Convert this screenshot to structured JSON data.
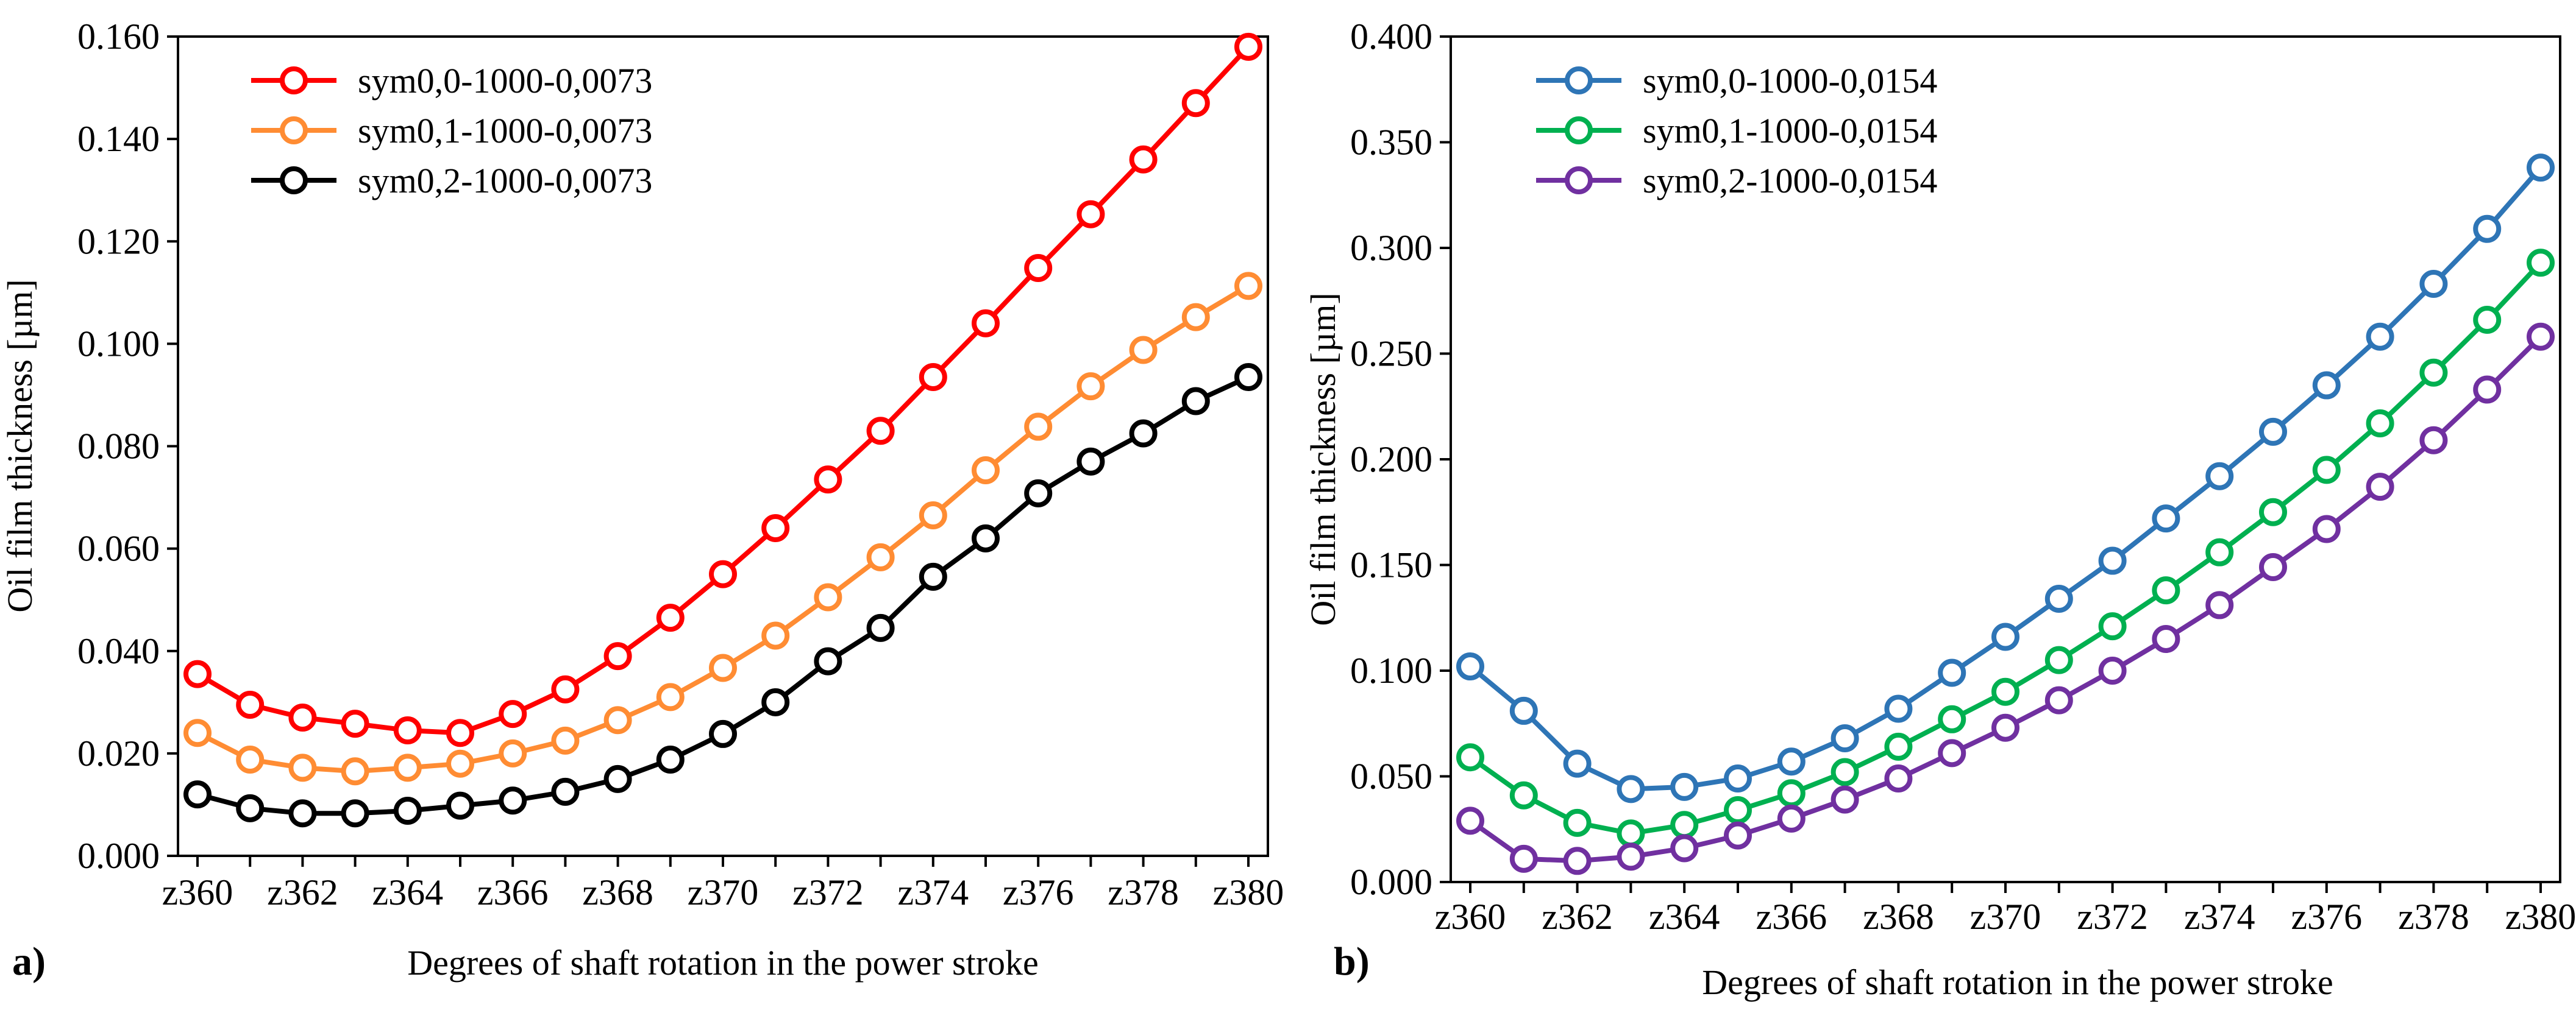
{
  "chart_data": [
    {
      "type": "line",
      "panel_label": "a)",
      "xlabel": "Degrees of shaft rotation in the power stroke",
      "ylabel": "Oil film thickness [µm]",
      "x": [
        "z360",
        "z361",
        "z362",
        "z363",
        "z364",
        "z365",
        "z366",
        "z367",
        "z368",
        "z369",
        "z370",
        "z371",
        "z372",
        "z373",
        "z374",
        "z375",
        "z376",
        "z377",
        "z378",
        "z379",
        "z380"
      ],
      "x_tick_labels": [
        "z360",
        "z362",
        "z364",
        "z366",
        "z368",
        "z370",
        "z372",
        "z374",
        "z376",
        "z378",
        "z380"
      ],
      "ylim": [
        0,
        0.16
      ],
      "y_ticks": [
        0,
        0.02,
        0.04,
        0.06,
        0.08,
        0.1,
        0.12,
        0.14,
        0.16
      ],
      "y_tick_labels": [
        "0.000",
        "0.020",
        "0.040",
        "0.060",
        "0.080",
        "0.100",
        "0.120",
        "0.140",
        "0.160"
      ],
      "grid": false,
      "legend_position": "top-left",
      "series": [
        {
          "name": "sym0,0-1000-0,0073",
          "color": "#ff0000",
          "values": [
            0.0355,
            0.0295,
            0.027,
            0.0258,
            0.0245,
            0.024,
            0.0277,
            0.0325,
            0.039,
            0.0465,
            0.055,
            0.064,
            0.0735,
            0.083,
            0.0935,
            0.104,
            0.1148,
            0.1253,
            0.136,
            0.147,
            0.158
          ]
        },
        {
          "name": "sym0,1-1000-0,0073",
          "color": "#ff8c33",
          "values": [
            0.024,
            0.0188,
            0.0172,
            0.0165,
            0.0172,
            0.018,
            0.02,
            0.0225,
            0.0265,
            0.031,
            0.0367,
            0.043,
            0.0505,
            0.0583,
            0.0665,
            0.0753,
            0.0838,
            0.0917,
            0.0988,
            0.1052,
            0.1113
          ]
        },
        {
          "name": "sym0,2-1000-0,0073",
          "color": "#000000",
          "values": [
            0.012,
            0.0093,
            0.0083,
            0.0083,
            0.0088,
            0.0098,
            0.0108,
            0.0125,
            0.015,
            0.0188,
            0.0238,
            0.03,
            0.038,
            0.0445,
            0.0545,
            0.062,
            0.0708,
            0.077,
            0.0825,
            0.0888,
            0.0935
          ]
        }
      ]
    },
    {
      "type": "line",
      "panel_label": "b)",
      "xlabel": "Degrees of shaft rotation in the power stroke",
      "ylabel": "Oil film thickness [µm]",
      "x": [
        "z360",
        "z361",
        "z362",
        "z363",
        "z364",
        "z365",
        "z366",
        "z367",
        "z368",
        "z369",
        "z370",
        "z371",
        "z372",
        "z373",
        "z374",
        "z375",
        "z376",
        "z377",
        "z378",
        "z379",
        "z380"
      ],
      "x_tick_labels": [
        "z360",
        "z362",
        "z364",
        "z366",
        "z368",
        "z370",
        "z372",
        "z374",
        "z376",
        "z378",
        "z380"
      ],
      "ylim": [
        0,
        0.4
      ],
      "y_ticks": [
        0,
        0.05,
        0.1,
        0.15,
        0.2,
        0.25,
        0.3,
        0.35,
        0.4
      ],
      "y_tick_labels": [
        "0.000",
        "0.050",
        "0.100",
        "0.150",
        "0.200",
        "0.250",
        "0.300",
        "0.350",
        "0.400"
      ],
      "grid": false,
      "legend_position": "top-left",
      "series": [
        {
          "name": "sym0,0-1000-0,0154",
          "color": "#2e75b6",
          "values": [
            0.102,
            0.081,
            0.056,
            0.044,
            0.045,
            0.049,
            0.057,
            0.068,
            0.082,
            0.099,
            0.116,
            0.134,
            0.152,
            0.172,
            0.192,
            0.213,
            0.235,
            0.258,
            0.283,
            0.309,
            0.338
          ]
        },
        {
          "name": "sym0,1-1000-0,0154",
          "color": "#00b050",
          "values": [
            0.059,
            0.041,
            0.028,
            0.023,
            0.027,
            0.034,
            0.042,
            0.052,
            0.064,
            0.077,
            0.09,
            0.105,
            0.121,
            0.138,
            0.156,
            0.175,
            0.195,
            0.217,
            0.241,
            0.266,
            0.293
          ]
        },
        {
          "name": "sym0,2-1000-0,0154",
          "color": "#7030a0",
          "values": [
            0.029,
            0.011,
            0.01,
            0.012,
            0.016,
            0.022,
            0.03,
            0.039,
            0.049,
            0.061,
            0.073,
            0.086,
            0.1,
            0.115,
            0.131,
            0.149,
            0.167,
            0.187,
            0.209,
            0.233,
            0.258
          ]
        }
      ]
    }
  ]
}
